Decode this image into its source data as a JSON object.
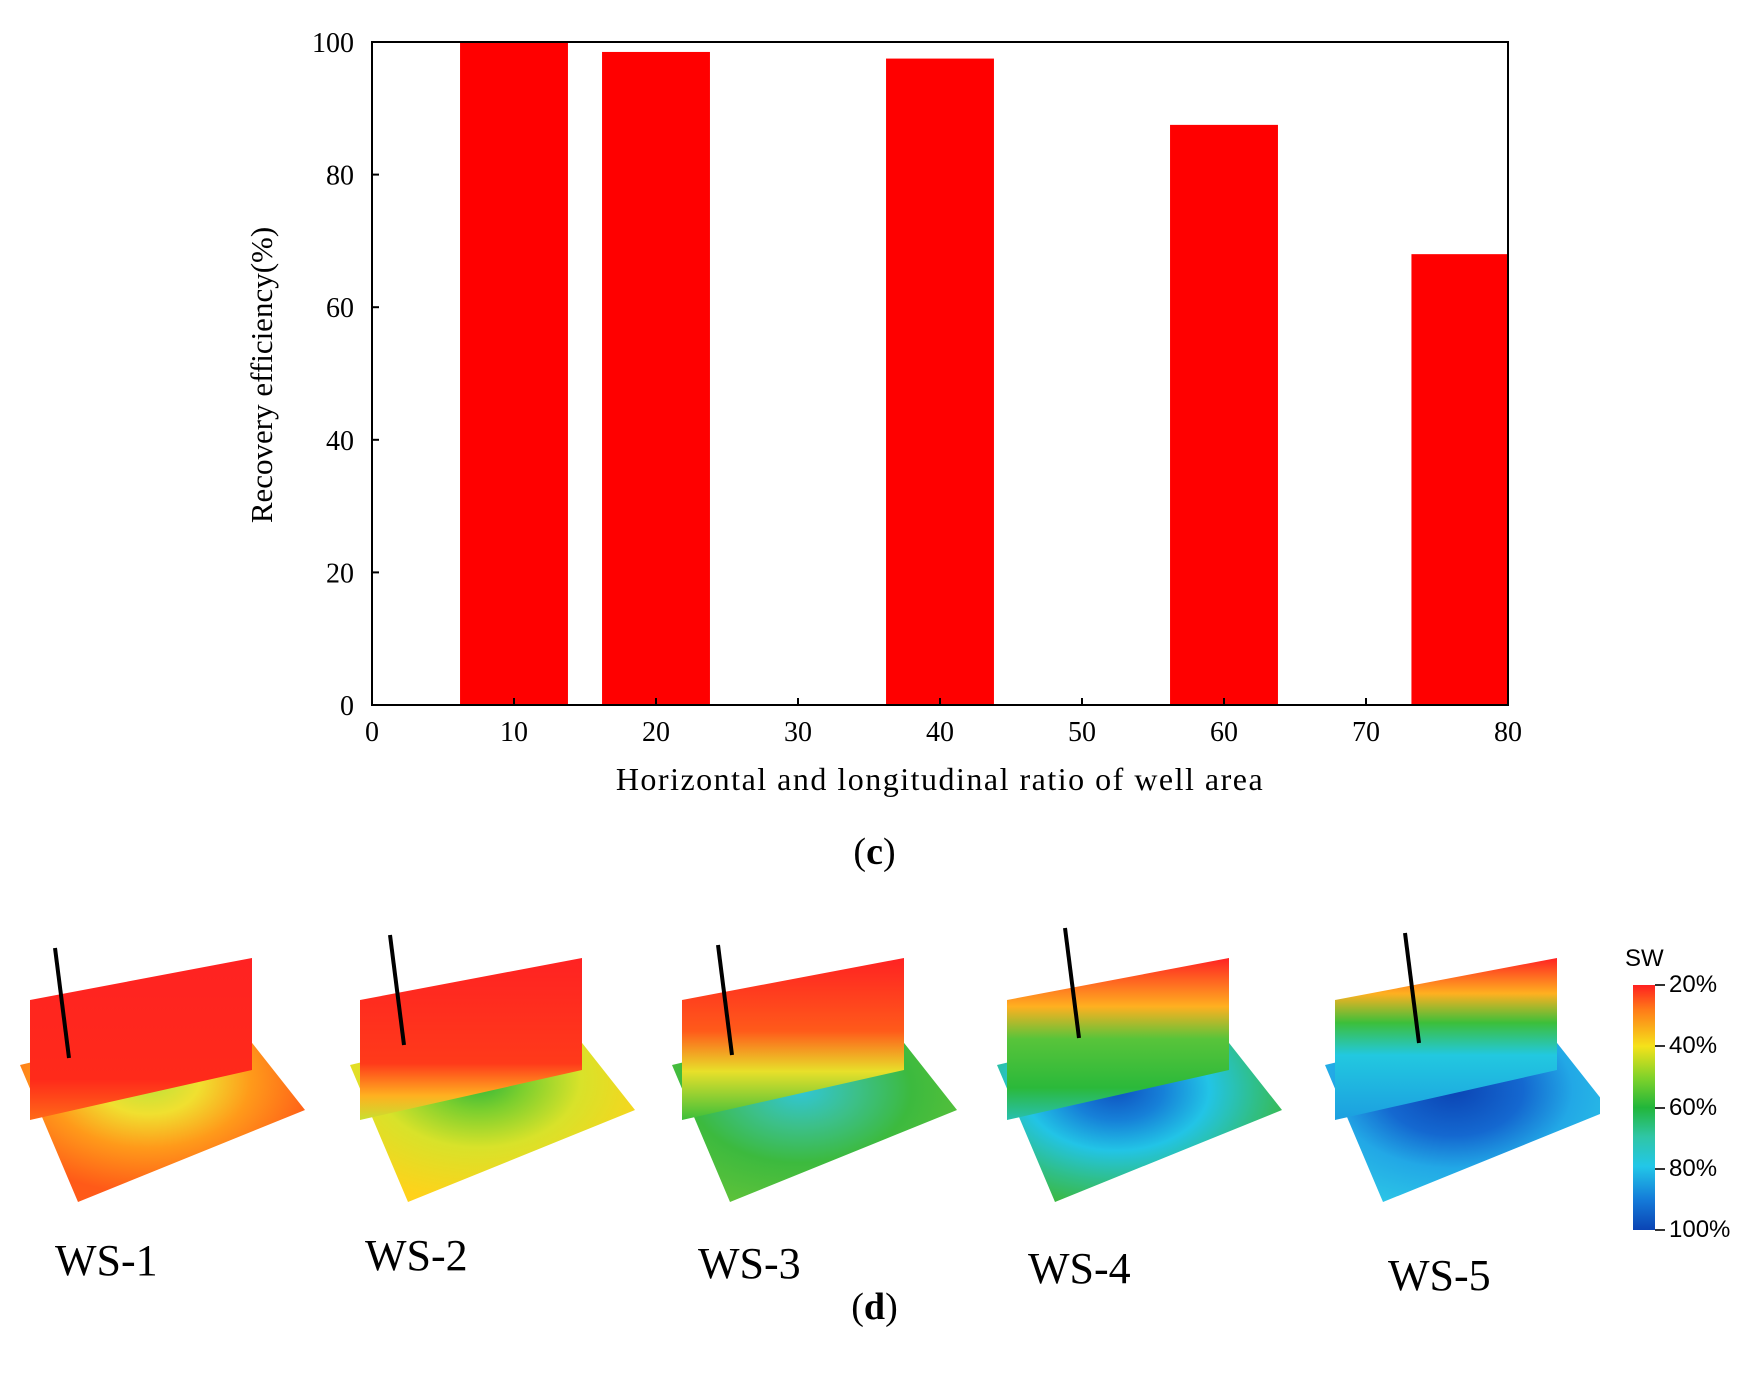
{
  "chart_data": {
    "type": "bar",
    "title": "",
    "xlabel": "Horizontal and longitudinal ratio of well area",
    "ylabel": "Recovery efficiency(%)",
    "xlim": [
      0,
      80
    ],
    "ylim": [
      0,
      100
    ],
    "x_ticks": [
      "0",
      "10",
      "20",
      "30",
      "40",
      "50",
      "60",
      "70",
      "80"
    ],
    "y_ticks": [
      "0",
      "20",
      "40",
      "60",
      "80",
      "100"
    ],
    "x": [
      10,
      20,
      40,
      60,
      77
    ],
    "values": [
      100,
      98.5,
      97.5,
      87.5,
      68
    ],
    "bar_width_units": 7.6,
    "color": "#ff0000",
    "grid": false
  },
  "panel_c_label": {
    "open": "(",
    "letter": "c",
    "close": ")"
  },
  "panel_d_label": {
    "open": "(",
    "letter": "d",
    "close": ")"
  },
  "panel_d": {
    "cases": [
      {
        "label": "WS-1",
        "image": "water-saturation-map-ws1"
      },
      {
        "label": "WS-2",
        "image": "water-saturation-map-ws2"
      },
      {
        "label": "WS-3",
        "image": "water-saturation-map-ws3"
      },
      {
        "label": "WS-4",
        "image": "water-saturation-map-ws4"
      },
      {
        "label": "WS-5",
        "image": "water-saturation-map-ws5"
      }
    ],
    "legend": {
      "title": "SW",
      "ticks": [
        "20%",
        "40%",
        "60%",
        "80%",
        "100%"
      ]
    }
  }
}
